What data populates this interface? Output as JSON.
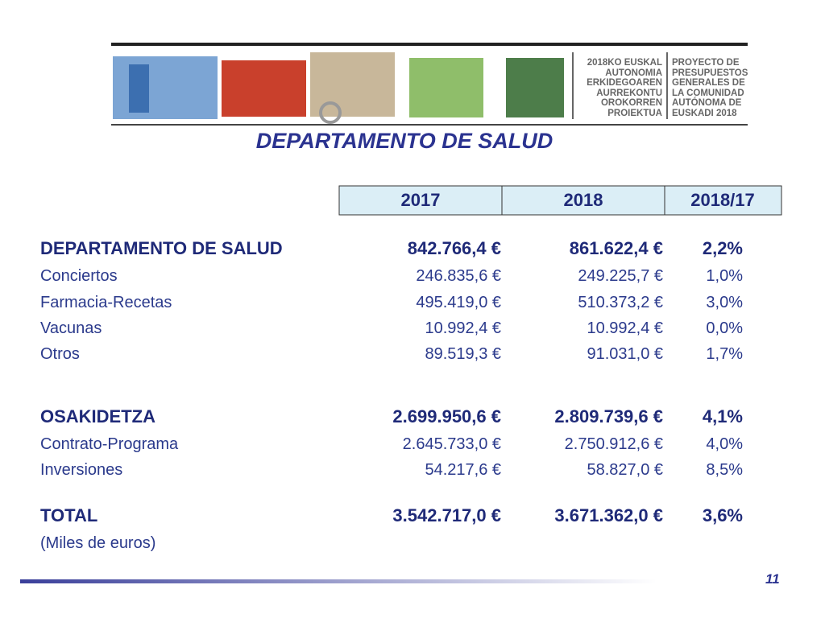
{
  "header": {
    "basque_lines": [
      "2018KO EUSKAL",
      "AUTONOMIA",
      "ERKIDEGOAREN",
      "AURREKONTU",
      "OROKORREN",
      "PROIEKTUA"
    ],
    "spanish_lines": [
      "PROYECTO DE",
      "PRESUPUESTOS",
      "GENERALES DE",
      "LA COMUNIDAD",
      "AUTÓNOMA DE",
      "EUSKADI 2018"
    ]
  },
  "title": "DEPARTAMENTO DE SALUD",
  "table": {
    "columns": [
      "2017",
      "2018",
      "2018/17"
    ],
    "rows": [
      {
        "bold": true,
        "cells": [
          "DEPARTAMENTO DE SALUD",
          "842.766,4 €",
          "861.622,4 €",
          "2,2%"
        ]
      },
      {
        "bold": false,
        "cells": [
          "Conciertos",
          "246.835,6 €",
          "249.225,7 €",
          "1,0%"
        ]
      },
      {
        "bold": false,
        "cells": [
          "Farmacia-Recetas",
          "495.419,0 €",
          "510.373,2 €",
          "3,0%"
        ]
      },
      {
        "bold": false,
        "cells": [
          "Vacunas",
          "10.992,4 €",
          "10.992,4 €",
          "0,0%"
        ]
      },
      {
        "bold": false,
        "cells": [
          "Otros",
          "89.519,3 €",
          "91.031,0 €",
          "1,7%"
        ]
      },
      {
        "bold": true,
        "cells": [
          "OSAKIDETZA",
          "2.699.950,6 €",
          "2.809.739,6 €",
          "4,1%"
        ]
      },
      {
        "bold": false,
        "cells": [
          "Contrato-Programa",
          "2.645.733,0 €",
          "2.750.912,6 €",
          "4,0%"
        ]
      },
      {
        "bold": false,
        "cells": [
          "Inversiones",
          "54.217,6 €",
          "58.827,0 €",
          "8,5%"
        ]
      },
      {
        "bold": true,
        "cells": [
          "TOTAL",
          "3.542.717,0 €",
          "3.671.362,0 €",
          "3,6%"
        ]
      }
    ]
  },
  "footnote": "(Miles de euros)",
  "page_number": "11"
}
